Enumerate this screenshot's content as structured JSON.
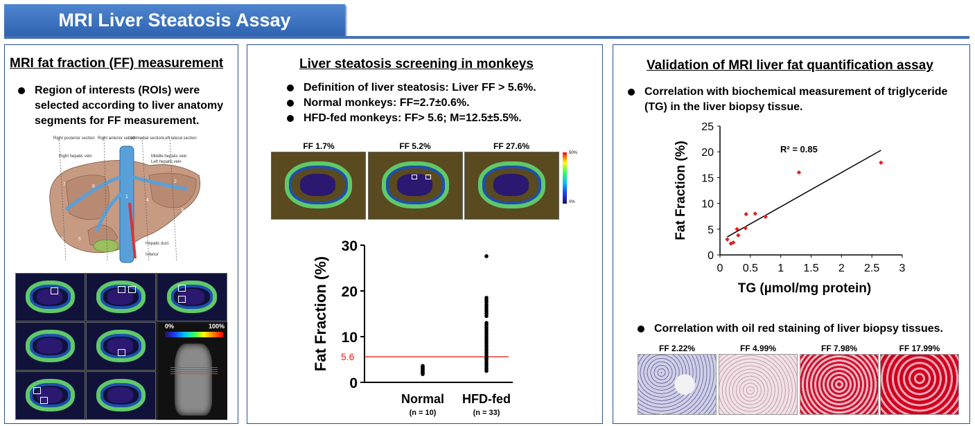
{
  "page_title": "MRI Liver Steatosis Assay",
  "left": {
    "heading": "MRI fat fraction (FF) measurement",
    "bullets": [
      "Region of interests (ROIs) were selected according to liver anatomy segments for FF measurement."
    ],
    "anatomy_labels": [
      "Right posterior section",
      "Right anterior section",
      "Left medial section",
      "Left lateral section",
      "Right hepatic vein",
      "Middle hepatic vein",
      "Left hepatic vein",
      "Hepatic duct",
      "Inferior"
    ],
    "segments": [
      "7",
      "8",
      "2",
      "4",
      "3",
      "1",
      "6",
      "5"
    ],
    "colorbar": {
      "min": "0%",
      "max": "100%"
    }
  },
  "middle": {
    "heading": "Liver steatosis screening in monkeys",
    "bullets": [
      "Definition of liver steatosis: Liver FF > 5.6%.",
      "Normal monkeys: FF=2.7±0.6%.",
      "HFD-fed monkeys: FF> 5.6; M=12.5±5.5%."
    ],
    "scan_labels": [
      "FF 1.7%",
      "FF 5.2%",
      "FF 27.6%"
    ],
    "scale": {
      "max": "50%",
      "min": "0%"
    }
  },
  "right": {
    "heading": "Validation of MRI liver fat quantification assay",
    "bullet1": "Correlation with biochemical measurement of triglyceride (TG) in the liver biopsy tissue.",
    "bullet2": "Correlation with oil red staining of liver biopsy tissues.",
    "stain_labels": [
      "FF 2.22%",
      "FF 4.99%",
      "FF 7.98%",
      "FF 17.99%"
    ]
  },
  "chart_data": [
    {
      "type": "scatter",
      "ylabel": "Fat Fraction (%)",
      "ylim": [
        0,
        30
      ],
      "yticks": [
        0,
        10,
        20,
        30
      ],
      "categories": [
        "Normal",
        "HFD-fed"
      ],
      "category_notes": [
        "(n = 10)",
        "(n = 33)"
      ],
      "threshold": {
        "value": 5.6,
        "label": "5.6",
        "color": "#e8201c"
      },
      "series": [
        {
          "values": [
            1.8,
            2.0,
            2.2,
            2.4,
            2.6,
            2.8,
            3.0,
            3.2,
            3.4,
            3.6
          ]
        },
        {
          "values": [
            2.5,
            3.0,
            3.5,
            4.0,
            4.5,
            5.0,
            5.2,
            5.5,
            6.0,
            6.5,
            7.0,
            7.5,
            8.0,
            8.5,
            9.0,
            9.5,
            10.0,
            10.5,
            11.0,
            11.5,
            12.0,
            12.5,
            13.0,
            14.5,
            15.0,
            15.5,
            16.0,
            16.5,
            17.0,
            17.5,
            18.0,
            18.5,
            27.6
          ]
        }
      ],
      "grid": false
    },
    {
      "type": "scatter",
      "xlabel": "TG (µmol/mg protein)",
      "ylabel": "Fat Fraction (%)",
      "xlim": [
        0,
        3
      ],
      "ylim": [
        0,
        25
      ],
      "xticks": [
        "0",
        "0.5",
        "1",
        "1.5",
        "2",
        "2.5",
        "3"
      ],
      "yticks": [
        "0",
        "5",
        "10",
        "15",
        "20",
        "25"
      ],
      "points": [
        [
          0.12,
          3.0
        ],
        [
          0.18,
          2.2
        ],
        [
          0.22,
          2.4
        ],
        [
          0.28,
          5.0
        ],
        [
          0.3,
          3.8
        ],
        [
          0.42,
          5.2
        ],
        [
          0.43,
          7.9
        ],
        [
          0.58,
          8.0
        ],
        [
          0.75,
          7.4
        ],
        [
          1.3,
          16.0
        ],
        [
          2.65,
          17.9
        ]
      ],
      "trendline": {
        "x": [
          0.12,
          2.65
        ],
        "y": [
          3.5,
          20.3
        ]
      },
      "annotation": "R² = 0.85",
      "marker_color": "#e02020",
      "grid": false
    }
  ]
}
